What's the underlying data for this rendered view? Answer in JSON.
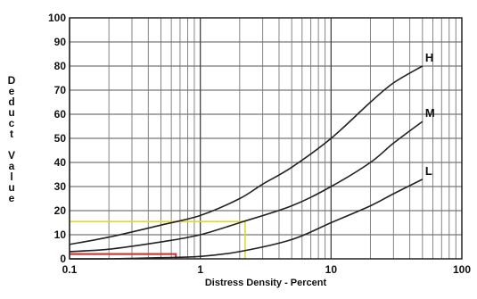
{
  "chart_data": {
    "type": "line",
    "x_scale": "log",
    "xlim": [
      0.1,
      100
    ],
    "ylim": [
      0,
      100
    ],
    "grid": true,
    "xlabel": "Distress Density - Percent",
    "ylabel": "Deduct Value",
    "x_tick_labels": [
      "0.1",
      "1",
      "10",
      "100"
    ],
    "y_tick_labels": [
      "0",
      "10",
      "20",
      "30",
      "40",
      "50",
      "60",
      "70",
      "80",
      "90",
      "100"
    ],
    "series": [
      {
        "name": "H",
        "color": "#222222",
        "x": [
          0.1,
          0.2,
          0.5,
          1,
          2,
          3,
          5,
          10,
          20,
          30,
          50
        ],
        "y": [
          6,
          9,
          14,
          18,
          25,
          31,
          38,
          50,
          65,
          73,
          80
        ]
      },
      {
        "name": "M",
        "color": "#222222",
        "x": [
          0.1,
          0.2,
          0.5,
          1,
          2,
          5,
          10,
          20,
          30,
          50
        ],
        "y": [
          3,
          4,
          7,
          10,
          15,
          22,
          30,
          40,
          48,
          57
        ]
      },
      {
        "name": "L",
        "color": "#222222",
        "x": [
          0.1,
          0.2,
          0.5,
          1,
          2,
          5,
          10,
          20,
          30,
          50
        ],
        "y": [
          0,
          0,
          0.5,
          1,
          3,
          8,
          15,
          22,
          27,
          33
        ]
      }
    ],
    "annotations": [
      {
        "kind": "yellow-guide",
        "color": "#e3d832",
        "x": 2.2,
        "y": 15.5
      },
      {
        "kind": "red-guide",
        "color": "#d13a3a",
        "x": 0.65,
        "y": 2
      }
    ]
  }
}
